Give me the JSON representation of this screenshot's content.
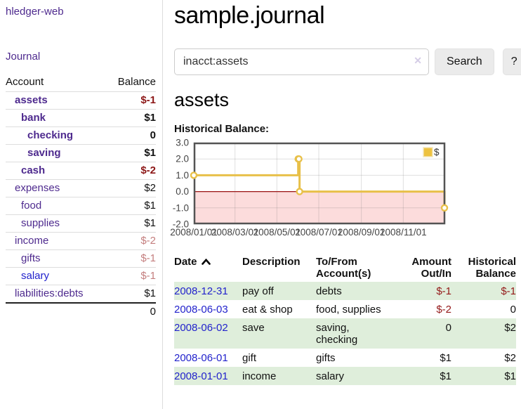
{
  "sidebar": {
    "brand": "hledger-web",
    "journal_label": "Journal",
    "accounts_table": {
      "headers": {
        "account": "Account",
        "balance": "Balance"
      },
      "rows": [
        {
          "account": "assets",
          "balance": "$-1",
          "depth": 0,
          "bold": true,
          "unvisited": false
        },
        {
          "account": "bank",
          "balance": "$1",
          "depth": 1,
          "bold": true,
          "unvisited": false
        },
        {
          "account": "checking",
          "balance": "0",
          "depth": 2,
          "bold": true,
          "unvisited": false
        },
        {
          "account": "saving",
          "balance": "$1",
          "depth": 2,
          "bold": true,
          "unvisited": false
        },
        {
          "account": "cash",
          "balance": "$-2",
          "depth": 1,
          "bold": true,
          "unvisited": false
        },
        {
          "account": "expenses",
          "balance": "$2",
          "depth": 0,
          "bold": false,
          "unvisited": false
        },
        {
          "account": "food",
          "balance": "$1",
          "depth": 1,
          "bold": false,
          "unvisited": false
        },
        {
          "account": "supplies",
          "balance": "$1",
          "depth": 1,
          "bold": false,
          "unvisited": false
        },
        {
          "account": "income",
          "balance": "$-2",
          "depth": 0,
          "bold": false,
          "unvisited": false
        },
        {
          "account": "gifts",
          "balance": "$-1",
          "depth": 1,
          "bold": false,
          "unvisited": false
        },
        {
          "account": "salary",
          "balance": "$-1",
          "depth": 1,
          "bold": false,
          "unvisited": true
        },
        {
          "account": "liabilities:debts",
          "balance": "$1",
          "depth": 0,
          "bold": false,
          "unvisited": false
        }
      ],
      "total": "0"
    }
  },
  "header": {
    "title": "sample.journal"
  },
  "search": {
    "value": "inacct:assets",
    "clear_icon": "✕",
    "button_label": "Search",
    "help_label": "?"
  },
  "account_page": {
    "title": "assets",
    "chart_label": "Historical Balance:"
  },
  "chart_data": {
    "type": "line",
    "step": true,
    "title": "Historical Balance",
    "series": [
      {
        "name": "$",
        "color": "#edc240",
        "points": [
          [
            "2008-01-01",
            1.0
          ],
          [
            "2008-06-01",
            2.0
          ],
          [
            "2008-06-02",
            2.0
          ],
          [
            "2008-06-03",
            0.0
          ],
          [
            "2008-12-31",
            -1.0
          ]
        ]
      }
    ],
    "x_range": [
      "2008-01-01",
      "2009-01-01"
    ],
    "x_ticks": [
      "2008/01/01",
      "2008/03/01",
      "2008/05/01",
      "2008/07/01",
      "2008/09/01",
      "2008/11/01"
    ],
    "y_ticks": [
      3.0,
      2.0,
      1.0,
      0.0,
      -1.0,
      -2.0
    ],
    "ylim": [
      -2.0,
      3.0
    ],
    "grid": true,
    "legend": {
      "label": "$",
      "position": "top-right"
    },
    "colors": {
      "line": "#e8c049",
      "marker_fill": "#ffffff",
      "negative_region": "#fcdcdc",
      "zero_line": "#9b1313",
      "gridline": "rgba(110,110,110,0.22)",
      "plot_border": "#545454",
      "tick_text": "#444444"
    }
  },
  "register_table": {
    "headers": {
      "date": "Date",
      "description": "Description",
      "accounts": "To/From Account(s)",
      "amount": "Amount Out/In",
      "balance": "Historical Balance"
    },
    "rows": [
      {
        "date": "2008-12-31",
        "description": "pay off",
        "accounts": "debts",
        "amount": "$-1",
        "balance": "$-1"
      },
      {
        "date": "2008-06-03",
        "description": "eat & shop",
        "accounts": "food, supplies",
        "amount": "$-2",
        "balance": "0"
      },
      {
        "date": "2008-06-02",
        "description": "save",
        "accounts": "saving, checking",
        "amount": "0",
        "balance": "$2"
      },
      {
        "date": "2008-06-01",
        "description": "gift",
        "accounts": "gifts",
        "amount": "$1",
        "balance": "$2"
      },
      {
        "date": "2008-01-01",
        "description": "income",
        "accounts": "salary",
        "amount": "$1",
        "balance": "$1"
      }
    ]
  }
}
